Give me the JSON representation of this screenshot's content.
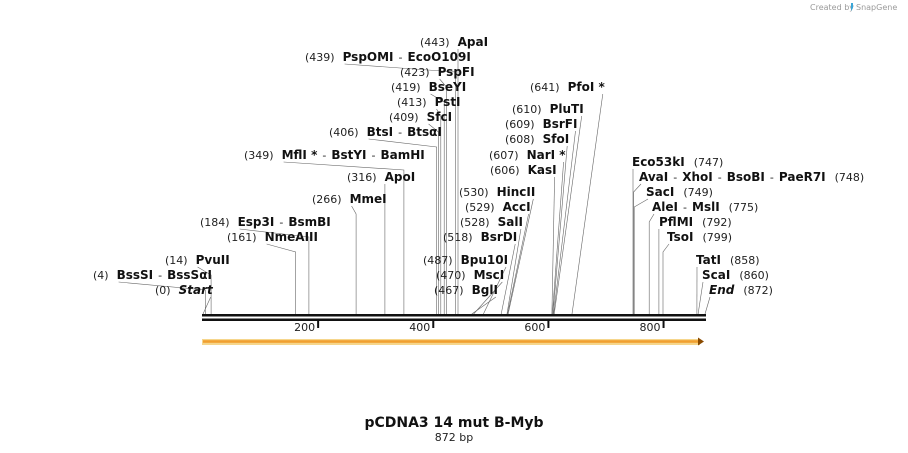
{
  "credit": "Created by",
  "brand": "SnapGene",
  "title": "pCDNA3 14 mut B-Myb",
  "length_label": "872 bp",
  "total_bp": 872,
  "scale_ticks": [
    {
      "bp": 200,
      "label": "200"
    },
    {
      "bp": 400,
      "label": "400"
    },
    {
      "bp": 600,
      "label": "600"
    },
    {
      "bp": 800,
      "label": "800"
    }
  ],
  "feature_arrow": {
    "start_bp": 0,
    "end_bp": 872,
    "color": "#f0a030"
  },
  "sites": [
    {
      "id": "s-start",
      "pos": "(0)",
      "bp": 0,
      "names": [
        "Start"
      ],
      "italic": true
    },
    {
      "id": "s-bsssi",
      "pos": "(4)",
      "bp": 4,
      "names": [
        "BssSI",
        "BssSαI"
      ]
    },
    {
      "id": "s-pvuii",
      "pos": "(14)",
      "bp": 14,
      "names": [
        "PvuII"
      ]
    },
    {
      "id": "s-nmeaiii",
      "pos": "(161)",
      "bp": 161,
      "names": [
        "NmeAIII"
      ]
    },
    {
      "id": "s-esp3i",
      "pos": "(184)",
      "bp": 184,
      "names": [
        "Esp3I",
        "BsmBI"
      ]
    },
    {
      "id": "s-mmei",
      "pos": "(266)",
      "bp": 266,
      "names": [
        "MmeI"
      ]
    },
    {
      "id": "s-apoi",
      "pos": "(316)",
      "bp": 316,
      "names": [
        "ApoI"
      ]
    },
    {
      "id": "s-mfli",
      "pos": "(349)",
      "bp": 349,
      "names": [
        "MflI *",
        "BstYI",
        "BamHI"
      ]
    },
    {
      "id": "s-btsi",
      "pos": "(406)",
      "bp": 406,
      "names": [
        "BtsI",
        "BtsαI"
      ]
    },
    {
      "id": "s-sfci",
      "pos": "(409)",
      "bp": 409,
      "names": [
        "SfcI"
      ]
    },
    {
      "id": "s-psti",
      "pos": "(413)",
      "bp": 413,
      "names": [
        "PstI"
      ]
    },
    {
      "id": "s-bseyi",
      "pos": "(419)",
      "bp": 419,
      "names": [
        "BseYI"
      ]
    },
    {
      "id": "s-pspfi",
      "pos": "(423)",
      "bp": 423,
      "names": [
        "PspFI"
      ]
    },
    {
      "id": "s-pspomi",
      "pos": "(439)",
      "bp": 439,
      "names": [
        "PspOMI",
        "EcoO109I"
      ]
    },
    {
      "id": "s-apai",
      "pos": "(443)",
      "bp": 443,
      "names": [
        "ApaI"
      ]
    },
    {
      "id": "s-bgli",
      "pos": "(467)",
      "bp": 467,
      "names": [
        "BglI"
      ]
    },
    {
      "id": "s-msci",
      "pos": "(470)",
      "bp": 470,
      "names": [
        "MscI"
      ]
    },
    {
      "id": "s-bpu10i",
      "pos": "(487)",
      "bp": 487,
      "names": [
        "Bpu10I"
      ]
    },
    {
      "id": "s-bsrdi",
      "pos": "(518)",
      "bp": 518,
      "names": [
        "BsrDI"
      ]
    },
    {
      "id": "s-sali",
      "pos": "(528)",
      "bp": 528,
      "names": [
        "SalI"
      ]
    },
    {
      "id": "s-acci",
      "pos": "(529)",
      "bp": 529,
      "names": [
        "AccI"
      ]
    },
    {
      "id": "s-hincii",
      "pos": "(530)",
      "bp": 530,
      "names": [
        "HincII"
      ]
    },
    {
      "id": "s-kasi",
      "pos": "(606)",
      "bp": 606,
      "names": [
        "KasI"
      ]
    },
    {
      "id": "s-nari",
      "pos": "(607)",
      "bp": 607,
      "names": [
        "NarI *"
      ]
    },
    {
      "id": "s-sfoi",
      "pos": "(608)",
      "bp": 608,
      "names": [
        "SfoI"
      ]
    },
    {
      "id": "s-bsrfi",
      "pos": "(609)",
      "bp": 609,
      "names": [
        "BsrFI"
      ]
    },
    {
      "id": "s-pluti",
      "pos": "(610)",
      "bp": 610,
      "names": [
        "PluTI"
      ]
    },
    {
      "id": "s-pfoi",
      "pos": "(641)",
      "bp": 641,
      "names": [
        "PfoI *"
      ]
    },
    {
      "id": "s-eco53ki",
      "pos": "(747)",
      "bp": 747,
      "names": [
        "Eco53kI"
      ],
      "pos_right": true
    },
    {
      "id": "s-avai",
      "pos": "(748)",
      "bp": 748,
      "names": [
        "AvaI",
        "XhoI",
        "BsoBI",
        "PaeR7I"
      ],
      "pos_right": true
    },
    {
      "id": "s-saci",
      "pos": "(749)",
      "bp": 749,
      "names": [
        "SacI"
      ],
      "pos_right": true
    },
    {
      "id": "s-alei",
      "pos": "(775)",
      "bp": 775,
      "names": [
        "AleI",
        "MslI"
      ],
      "pos_right": true
    },
    {
      "id": "s-pflmi",
      "pos": "(792)",
      "bp": 792,
      "names": [
        "PflMI"
      ],
      "pos_right": true
    },
    {
      "id": "s-tsoi",
      "pos": "(799)",
      "bp": 799,
      "names": [
        "TsoI"
      ],
      "pos_right": true
    },
    {
      "id": "s-tati",
      "pos": "(858)",
      "bp": 858,
      "names": [
        "TatI"
      ],
      "pos_right": true
    },
    {
      "id": "s-scai",
      "pos": "(860)",
      "bp": 860,
      "names": [
        "ScaI"
      ],
      "pos_right": true
    },
    {
      "id": "s-end",
      "pos": "(872)",
      "bp": 872,
      "names": [
        "End"
      ],
      "italic": true,
      "pos_right": true
    }
  ]
}
